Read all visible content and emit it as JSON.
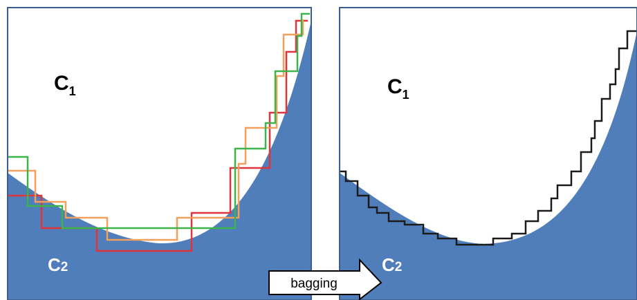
{
  "left_panel": {
    "class1_label": "C",
    "class1_sub": "1",
    "class2_label": "C",
    "class2_sub": "2",
    "region_color": "#4F7EBB",
    "boundary_colors": [
      "#E0333B",
      "#F3A05C",
      "#3BB54A"
    ]
  },
  "right_panel": {
    "class1_label": "C",
    "class1_sub": "1",
    "class2_label": "C",
    "class2_sub": "2",
    "region_color": "#4F7EBB",
    "boundary_color": "#1A1A1A"
  },
  "arrow": {
    "label": "bagging"
  }
}
